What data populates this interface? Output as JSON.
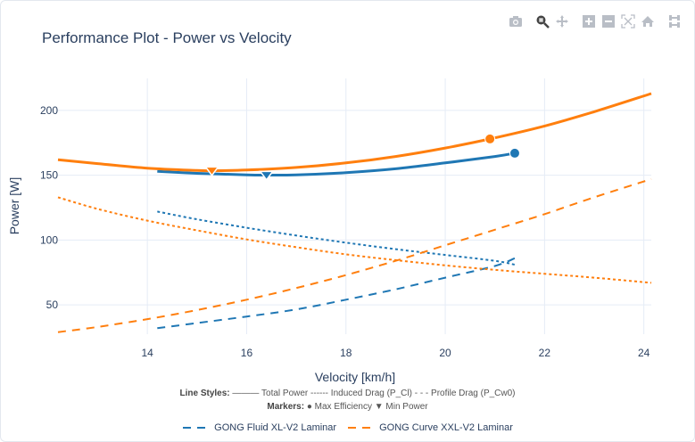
{
  "modebar": {
    "buttons": [
      {
        "name": "camera-icon",
        "label": "Download plot as png",
        "active": false
      },
      {
        "name": "zoom-icon",
        "label": "Zoom",
        "active": true
      },
      {
        "name": "pan-icon",
        "label": "Pan",
        "active": false
      },
      {
        "name": "zoom-in-icon",
        "label": "Zoom in",
        "active": false
      },
      {
        "name": "zoom-out-icon",
        "label": "Zoom out",
        "active": false
      },
      {
        "name": "autoscale-icon",
        "label": "Autoscale",
        "active": false
      },
      {
        "name": "home-icon",
        "label": "Reset axes",
        "active": false
      },
      {
        "name": "spikelines-icon",
        "label": "Toggle Spike Lines",
        "active": false
      }
    ]
  },
  "annotations": {
    "line_styles_label": "Line Styles:",
    "line_styles_text": "——— Total Power  ------ Induced Drag (P_Cl)  - - - Profile Drag (P_Cw0)",
    "markers_label": "Markers:",
    "markers_text": "● Max Efficiency  ▼ Min Power"
  },
  "colors": {
    "blue": "#1f77b4",
    "orange": "#ff7f0e",
    "grid": "#e5ecf6",
    "text": "#2a3f5f"
  },
  "chart_data": {
    "type": "line",
    "title": "Performance Plot - Power vs Velocity",
    "xlabel": "Velocity [km/h]",
    "ylabel": "Power [W]",
    "xlim": [
      12.2,
      24.15
    ],
    "ylim": [
      27.4,
      224.7
    ],
    "xticks": [
      14,
      16,
      18,
      20,
      22,
      24
    ],
    "yticks": [
      50,
      100,
      150,
      200
    ],
    "grid": true,
    "legend_position": "bottom-center",
    "series": [
      {
        "name": "GONG Fluid XL-V2 Laminar",
        "color": "#1f77b4",
        "curves": [
          {
            "kind": "total",
            "dash": "solid",
            "x": [
              14.2,
              15,
              16,
              16.4,
              17,
              18,
              19,
              20,
              21,
              21.4
            ],
            "y": [
              153,
              151.5,
              150.3,
              150.1,
              150.3,
              152,
              155,
              159.5,
              164.5,
              167
            ]
          },
          {
            "kind": "induced",
            "dash": "dot",
            "x": [
              14.2,
              15,
              16,
              17,
              18,
              19,
              20,
              21,
              21.4
            ],
            "y": [
              122,
              116,
              109.5,
              103.5,
              98,
              93,
              88.5,
              84,
              81
            ]
          },
          {
            "kind": "profile",
            "dash": "dash",
            "x": [
              14.2,
              15,
              16,
              17,
              18,
              19,
              20,
              21,
              21.4
            ],
            "y": [
              32,
              36,
              41,
              46.5,
              54,
              62,
              71,
              80,
              86
            ]
          }
        ],
        "markers": [
          {
            "kind": "max_efficiency",
            "symbol": "circle",
            "x": 21.4,
            "y": 167
          },
          {
            "kind": "min_power",
            "symbol": "triangle-down",
            "x": 16.4,
            "y": 150.1
          }
        ]
      },
      {
        "name": "GONG Curve XXL-V2 Laminar",
        "color": "#ff7f0e",
        "curves": [
          {
            "kind": "total",
            "dash": "solid",
            "x": [
              12.2,
              13,
              14,
              15,
              15.3,
              16,
              17,
              18,
              19,
              20,
              20.9,
              22,
              23,
              24.15
            ],
            "y": [
              162,
              159,
              155.5,
              153.7,
              153.5,
              154,
              156,
              159.5,
              164.5,
              171,
              178,
              188,
              199,
              213
            ]
          },
          {
            "kind": "induced",
            "dash": "dot",
            "x": [
              12.2,
              13,
              14,
              15,
              16,
              17,
              18,
              19,
              20,
              21,
              22,
              23,
              24.15
            ],
            "y": [
              133,
              124,
              115,
              107.5,
              100.5,
              94.5,
              89,
              84.5,
              80.5,
              77,
              74,
              71,
              67
            ]
          },
          {
            "kind": "profile",
            "dash": "dash",
            "x": [
              12.2,
              13,
              14,
              15,
              16,
              17,
              18,
              19,
              20,
              21,
              22,
              23,
              24.15
            ],
            "y": [
              29,
              33,
              39,
              46,
              54,
              63,
              73,
              84,
              96,
              108,
              120,
              133,
              147
            ]
          }
        ],
        "markers": [
          {
            "kind": "max_efficiency",
            "symbol": "circle",
            "x": 20.9,
            "y": 178
          },
          {
            "kind": "min_power",
            "symbol": "triangle-down",
            "x": 15.3,
            "y": 153.5
          }
        ]
      }
    ]
  }
}
